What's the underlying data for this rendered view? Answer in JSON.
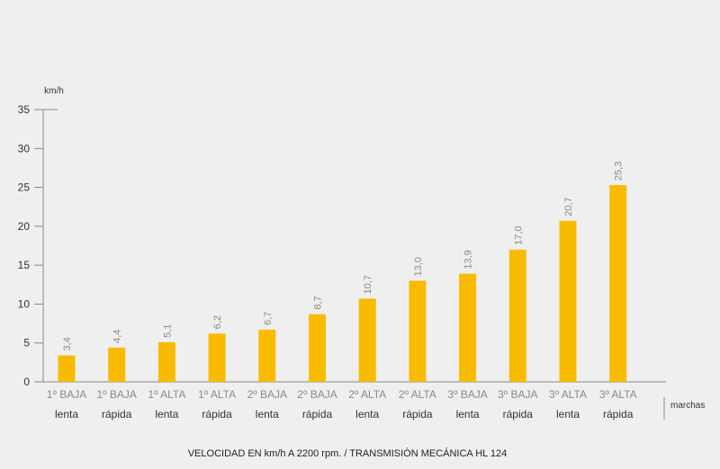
{
  "chart_data": {
    "type": "bar",
    "categories_top": [
      "1º BAJA",
      "1º BAJA",
      "1º ALTA",
      "1º ALTA",
      "2º BAJA",
      "2º BAJA",
      "2º ALTA",
      "2º ALTA",
      "3º BAJA",
      "3º BAJA",
      "3º ALTA",
      "3º ALTA"
    ],
    "categories_bottom": [
      "lenta",
      "rápida",
      "lenta",
      "rápida",
      "lenta",
      "rápida",
      "lenta",
      "rápida",
      "lenta",
      "rápida",
      "lenta",
      "rápida"
    ],
    "values": [
      3.4,
      4.4,
      5.1,
      6.2,
      6.7,
      8.7,
      10.7,
      13.0,
      13.9,
      17.0,
      20.7,
      25.3
    ],
    "value_labels": [
      "3,4",
      "4,4",
      "5,1",
      "6,2",
      "6,7",
      "8,7",
      "10,7",
      "13,0",
      "13,9",
      "17,0",
      "20,7",
      "25,3"
    ],
    "ylabel": "km/h",
    "xlabel": "marchas",
    "caption": "VELOCIDAD EN km/h A 2200 rpm. / TRANSMISIÓN MECÁNICA HL 124",
    "ylim": [
      0,
      35
    ],
    "yticks": [
      0,
      5,
      10,
      15,
      20,
      25,
      30,
      35
    ],
    "grid": false,
    "bar_color": "#f9bb00",
    "axis_color": "#888888",
    "background": "#efefef"
  }
}
